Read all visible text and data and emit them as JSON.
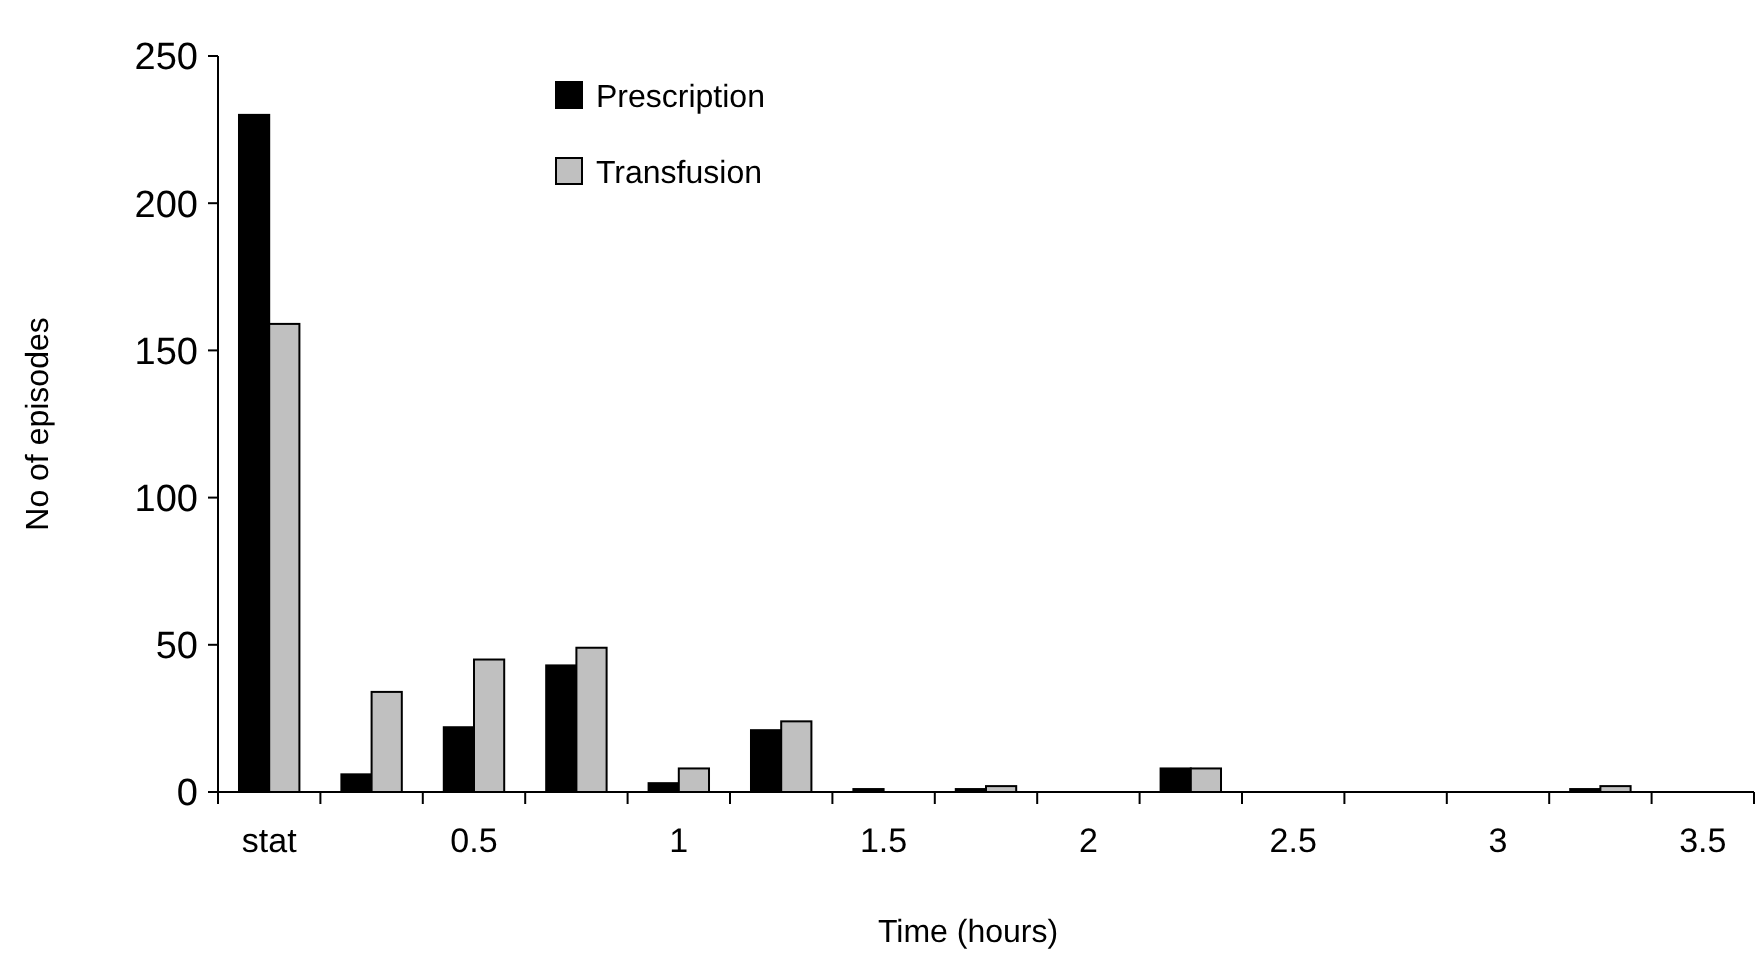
{
  "chart_data": {
    "type": "bar",
    "xlabel": "Time (hours)",
    "ylabel": "No of episodes",
    "categories": [
      "stat",
      null,
      "0.5",
      null,
      "1",
      null,
      "1.5",
      null,
      "2",
      null,
      "2.5",
      null,
      "3",
      null,
      "3.5"
    ],
    "series": [
      {
        "name": "Prescription",
        "color": "#000000",
        "values": [
          230,
          6,
          22,
          43,
          3,
          21,
          1,
          1,
          0,
          8,
          0,
          0,
          0,
          1,
          0
        ]
      },
      {
        "name": "Transfusion",
        "color": "#c0c0c0",
        "values": [
          159,
          34,
          45,
          49,
          8,
          24,
          0,
          2,
          0,
          8,
          0,
          0,
          0,
          2,
          0
        ]
      }
    ],
    "ylim": [
      0,
      250
    ],
    "yticks": [
      0,
      50,
      100,
      150,
      200,
      250
    ],
    "grid": false,
    "legend": "top"
  }
}
